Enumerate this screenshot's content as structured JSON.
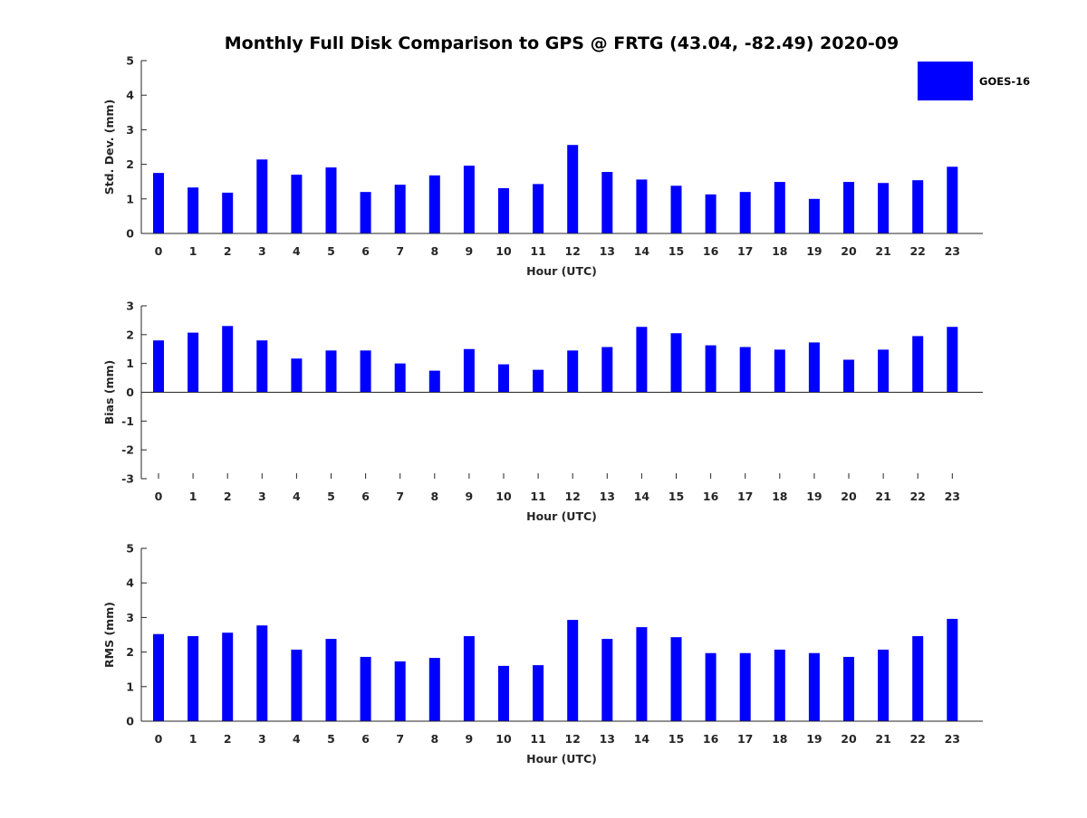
{
  "title": "Monthly Full Disk Comparison to GPS @ FRTG (43.04, -82.49) 2020-09",
  "legend": {
    "label": "GOES-16",
    "color": "#0000ff",
    "position": "top-right"
  },
  "chart_data": [
    {
      "type": "bar",
      "series": [
        {
          "name": "GOES-16",
          "values": [
            1.75,
            1.33,
            1.18,
            2.14,
            1.7,
            1.91,
            1.2,
            1.41,
            1.68,
            1.96,
            1.31,
            1.43,
            2.56,
            1.78,
            1.56,
            1.38,
            1.13,
            1.2,
            1.49,
            1.0,
            1.49,
            1.46,
            1.54,
            1.93
          ]
        }
      ],
      "categories": [
        "0",
        "1",
        "2",
        "3",
        "4",
        "5",
        "6",
        "7",
        "8",
        "9",
        "10",
        "11",
        "12",
        "13",
        "14",
        "15",
        "16",
        "17",
        "18",
        "19",
        "20",
        "21",
        "22",
        "23"
      ],
      "xlabel": "Hour (UTC)",
      "ylabel": "Std. Dev. (mm)",
      "ylim": [
        0,
        5
      ],
      "yticks": [
        "0",
        "1",
        "2",
        "3",
        "4",
        "5"
      ],
      "grid": false
    },
    {
      "type": "bar",
      "series": [
        {
          "name": "GOES-16",
          "values": [
            1.8,
            2.07,
            2.3,
            1.8,
            1.17,
            1.45,
            1.45,
            1.0,
            0.75,
            1.5,
            0.97,
            0.78,
            1.45,
            1.57,
            2.27,
            2.05,
            1.63,
            1.57,
            1.48,
            1.73,
            1.13,
            1.48,
            1.95,
            2.27
          ]
        }
      ],
      "categories": [
        "0",
        "1",
        "2",
        "3",
        "4",
        "5",
        "6",
        "7",
        "8",
        "9",
        "10",
        "11",
        "12",
        "13",
        "14",
        "15",
        "16",
        "17",
        "18",
        "19",
        "20",
        "21",
        "22",
        "23"
      ],
      "xlabel": "Hour (UTC)",
      "ylabel": "Bias (mm)",
      "ylim": [
        -3,
        3
      ],
      "yticks": [
        "-3",
        "-2",
        "-1",
        "0",
        "1",
        "2",
        "3"
      ],
      "grid": false
    },
    {
      "type": "bar",
      "series": [
        {
          "name": "GOES-16",
          "values": [
            2.52,
            2.46,
            2.56,
            2.77,
            2.07,
            2.38,
            1.86,
            1.73,
            1.83,
            2.46,
            1.6,
            1.62,
            2.93,
            2.38,
            2.72,
            2.43,
            1.97,
            1.97,
            2.07,
            1.97,
            1.86,
            2.07,
            2.46,
            2.96
          ]
        }
      ],
      "categories": [
        "0",
        "1",
        "2",
        "3",
        "4",
        "5",
        "6",
        "7",
        "8",
        "9",
        "10",
        "11",
        "12",
        "13",
        "14",
        "15",
        "16",
        "17",
        "18",
        "19",
        "20",
        "21",
        "22",
        "23"
      ],
      "xlabel": "Hour (UTC)",
      "ylabel": "RMS (mm)",
      "ylim": [
        0,
        5
      ],
      "yticks": [
        "0",
        "1",
        "2",
        "3",
        "4",
        "5"
      ],
      "grid": false
    }
  ]
}
